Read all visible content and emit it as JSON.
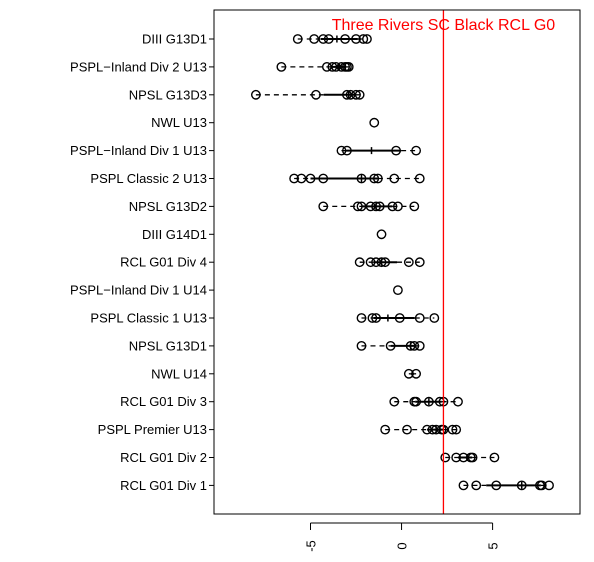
{
  "chart_data": {
    "type": "boxplot",
    "orientation": "horizontal",
    "title": "",
    "xlabel": "",
    "ylabel": "",
    "xlim": [
      -10.3,
      9.8
    ],
    "x_ticks": [
      -5,
      0,
      5
    ],
    "x_tick_labels": [
      "-5",
      "0",
      "5"
    ],
    "x_tick_label_rotation": 90,
    "reference_line": {
      "x": 2.3,
      "label": "Three Rivers SC Black RCL G0",
      "color": "#ff0000"
    },
    "style": {
      "point_color": "#000000",
      "frame_color": "#000000"
    },
    "categories": [
      "DIII G13D1",
      "PSPL−Inland Div 2 U13",
      "NPSL G13D3",
      "NWL U13",
      "PSPL−Inland Div 1 U13",
      "PSPL Classic 2 U13",
      "NPSL G13D2",
      "DIII G14D1",
      "RCL G01 Div 4",
      "PSPL−Inland Div 1 U14",
      "PSPL Classic 1 U13",
      "NPSL G13D1",
      "NWL U14",
      "RCL G01 Div 3",
      "PSPL Premier U13",
      "RCL G01 Div 2",
      "RCL G01 Div 1"
    ],
    "series": [
      {
        "values": [
          -5.7,
          -4.8,
          -4.3,
          -4.0,
          -3.1,
          -2.5,
          -2.1,
          -1.9
        ]
      },
      {
        "values": [
          -6.6,
          -4.1,
          -3.8,
          -3.6,
          -3.3,
          -3.1,
          -3.0,
          -2.9
        ]
      },
      {
        "values": [
          -8.0,
          -4.7,
          -3.0,
          -2.8,
          -2.5,
          -2.3
        ]
      },
      {
        "values": [
          -1.5
        ]
      },
      {
        "values": [
          -3.3,
          -3.0,
          -0.3,
          0.8
        ]
      },
      {
        "values": [
          -5.9,
          -5.5,
          -5.0,
          -4.3,
          -2.2,
          -1.5,
          -1.3,
          -0.4,
          1.0
        ]
      },
      {
        "values": [
          -4.3,
          -2.4,
          -2.2,
          -1.7,
          -1.4,
          -1.2,
          -0.5,
          -0.2,
          0.7
        ]
      },
      {
        "values": [
          -1.1
        ]
      },
      {
        "values": [
          -2.3,
          -1.7,
          -1.4,
          -1.1,
          -0.9,
          0.4,
          1.0
        ]
      },
      {
        "values": [
          -0.2
        ]
      },
      {
        "values": [
          -2.2,
          -1.6,
          -1.4,
          -0.1,
          1.0,
          1.8
        ]
      },
      {
        "values": [
          -2.2,
          -0.6,
          0.5,
          0.7,
          1.0
        ]
      },
      {
        "values": [
          0.4,
          0.8
        ]
      },
      {
        "values": [
          -0.4,
          0.7,
          0.8,
          1.5,
          2.1,
          2.3,
          3.1
        ]
      },
      {
        "values": [
          -0.9,
          0.3,
          1.4,
          1.7,
          1.9,
          2.2,
          2.3,
          2.8,
          3.0
        ]
      },
      {
        "values": [
          2.4,
          3.0,
          3.4,
          3.8,
          3.9,
          5.1
        ]
      },
      {
        "values": [
          3.4,
          4.1,
          5.2,
          6.6,
          7.6,
          7.7,
          8.1
        ]
      }
    ]
  }
}
